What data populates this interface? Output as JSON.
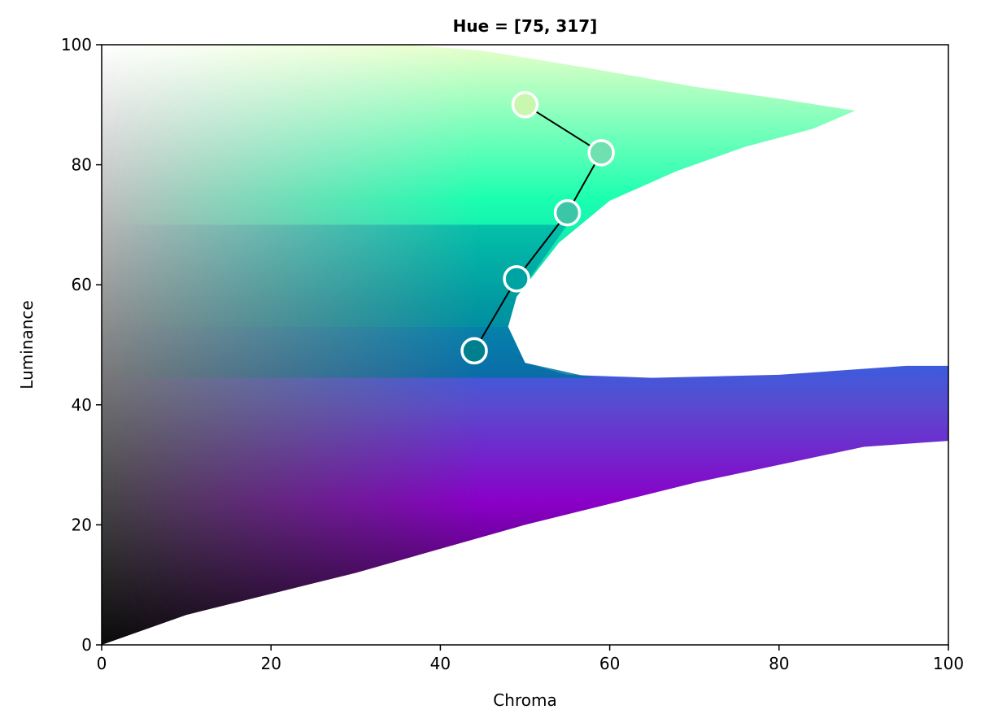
{
  "chart_data": {
    "type": "scatter",
    "title": "Hue = [75, 317]",
    "xlabel": "Chroma",
    "ylabel": "Luminance",
    "xlim": [
      0,
      100
    ],
    "ylim": [
      0,
      100
    ],
    "xticks": [
      "0",
      "20",
      "40",
      "60",
      "80",
      "100"
    ],
    "yticks": [
      "0",
      "20",
      "40",
      "60",
      "80",
      "100"
    ],
    "grid": false,
    "background_gamut": {
      "description_colors": {
        "black": "#000000",
        "white": "#ffffff",
        "light_yellow": "#ffffe0",
        "mint": "#a8ffa0",
        "spring_green": "#1affb0",
        "teal": "#00a0a0",
        "ocean_blue": "#0070a0",
        "blue": "#1f6ee8",
        "violet": "#8a00c8",
        "dark_purple": "#4a0060"
      }
    },
    "series": [
      {
        "x": [
          50,
          59,
          55,
          49,
          44
        ],
        "y": [
          90,
          82,
          72,
          61,
          49
        ],
        "fill_colors": [
          "#c9f7b0",
          "#6fe0b0",
          "#3cc6a8",
          "#00a3a3",
          "#00808f"
        ],
        "marker_edge": "#ffffff",
        "line_color": "#000000"
      }
    ]
  }
}
